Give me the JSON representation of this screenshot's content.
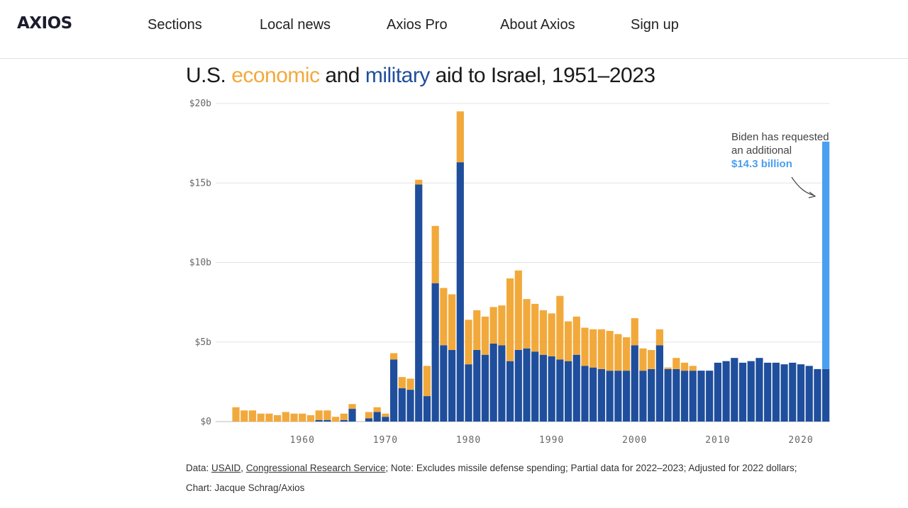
{
  "header": {
    "logo": "AXIOS",
    "nav": [
      "Sections",
      "Local news",
      "Axios Pro",
      "About Axios",
      "Sign up"
    ]
  },
  "title": {
    "prefix": "U.S. ",
    "economic_word": "economic",
    "middle": " and ",
    "military_word": "military",
    "suffix": " aid to Israel, 1951–2023"
  },
  "colors": {
    "economic": "#f2a93b",
    "military": "#1f4e9c",
    "request": "#4a9ff0",
    "text": "#1a1a1a"
  },
  "chart_data": {
    "type": "bar",
    "stacked": true,
    "title": "U.S. economic and military aid to Israel, 1951–2023",
    "xlabel": "",
    "ylabel": "",
    "ylim": [
      0,
      20
    ],
    "yticks": [
      0,
      5,
      10,
      15,
      20
    ],
    "ytick_labels": [
      "$0",
      "$5b",
      "$10b",
      "$15b",
      "$20b"
    ],
    "xticks": [
      1960,
      1970,
      1980,
      1990,
      2000,
      2010,
      2020
    ],
    "grid": true,
    "years": [
      1951,
      1952,
      1953,
      1954,
      1955,
      1956,
      1957,
      1958,
      1959,
      1960,
      1961,
      1962,
      1963,
      1964,
      1965,
      1966,
      1967,
      1968,
      1969,
      1970,
      1971,
      1972,
      1973,
      1974,
      1975,
      1976,
      1977,
      1978,
      1979,
      1980,
      1981,
      1982,
      1983,
      1984,
      1985,
      1986,
      1987,
      1988,
      1989,
      1990,
      1991,
      1992,
      1993,
      1994,
      1995,
      1996,
      1997,
      1998,
      1999,
      2000,
      2001,
      2002,
      2003,
      2004,
      2005,
      2006,
      2007,
      2008,
      2009,
      2010,
      2011,
      2012,
      2013,
      2014,
      2015,
      2016,
      2017,
      2018,
      2019,
      2020,
      2021,
      2022,
      2023
    ],
    "series": [
      {
        "name": "military",
        "values": [
          0,
          0,
          0,
          0,
          0,
          0,
          0,
          0,
          0,
          0,
          0,
          0.1,
          0.1,
          0,
          0.1,
          0.8,
          0,
          0.2,
          0.6,
          0.3,
          3.9,
          2.1,
          2.0,
          14.9,
          1.6,
          8.7,
          4.8,
          4.5,
          16.3,
          3.6,
          4.5,
          4.2,
          4.9,
          4.8,
          3.8,
          4.5,
          4.6,
          4.4,
          4.2,
          4.1,
          3.9,
          3.8,
          4.2,
          3.5,
          3.4,
          3.3,
          3.2,
          3.2,
          3.2,
          4.8,
          3.2,
          3.3,
          4.8,
          3.3,
          3.3,
          3.2,
          3.2,
          3.2,
          3.2,
          3.7,
          3.8,
          4.0,
          3.7,
          3.8,
          4.0,
          3.7,
          3.7,
          3.6,
          3.7,
          3.6,
          3.5,
          3.3,
          3.3
        ]
      },
      {
        "name": "economic",
        "values": [
          0,
          0.9,
          0.7,
          0.7,
          0.5,
          0.5,
          0.4,
          0.6,
          0.5,
          0.5,
          0.4,
          0.6,
          0.6,
          0.3,
          0.4,
          0.3,
          0,
          0.4,
          0.3,
          0.2,
          0.4,
          0.7,
          0.7,
          0.3,
          1.9,
          3.6,
          3.6,
          3.5,
          3.2,
          2.8,
          2.5,
          2.4,
          2.3,
          2.5,
          5.2,
          5.0,
          3.1,
          3.0,
          2.8,
          2.7,
          4.0,
          2.5,
          2.4,
          2.4,
          2.4,
          2.5,
          2.5,
          2.3,
          2.1,
          1.7,
          1.4,
          1.2,
          1.0,
          0.1,
          0.7,
          0.5,
          0.3,
          0,
          0,
          0,
          0,
          0,
          0,
          0,
          0,
          0,
          0,
          0,
          0,
          0,
          0,
          0,
          0
        ]
      },
      {
        "name": "requested",
        "values": [
          0,
          0,
          0,
          0,
          0,
          0,
          0,
          0,
          0,
          0,
          0,
          0,
          0,
          0,
          0,
          0,
          0,
          0,
          0,
          0,
          0,
          0,
          0,
          0,
          0,
          0,
          0,
          0,
          0,
          0,
          0,
          0,
          0,
          0,
          0,
          0,
          0,
          0,
          0,
          0,
          0,
          0,
          0,
          0,
          0,
          0,
          0,
          0,
          0,
          0,
          0,
          0,
          0,
          0,
          0,
          0,
          0,
          0,
          0,
          0,
          0,
          0,
          0,
          0,
          0,
          0,
          0,
          0,
          0,
          0,
          0,
          0,
          14.3
        ]
      }
    ],
    "annotation": {
      "year": 2023,
      "line1": "Biden has requested",
      "line2": "an additional",
      "highlight": "$14.3 billion"
    }
  },
  "footer": {
    "data_label": "Data: ",
    "source1": "USAID",
    "sep": ", ",
    "source2": "Congressional Research Service",
    "note": "; Note: Excludes missile defense spending; Partial data for 2022–2023; Adjusted for 2022 dollars;",
    "credit": "Chart: Jacque Schrag/Axios"
  }
}
